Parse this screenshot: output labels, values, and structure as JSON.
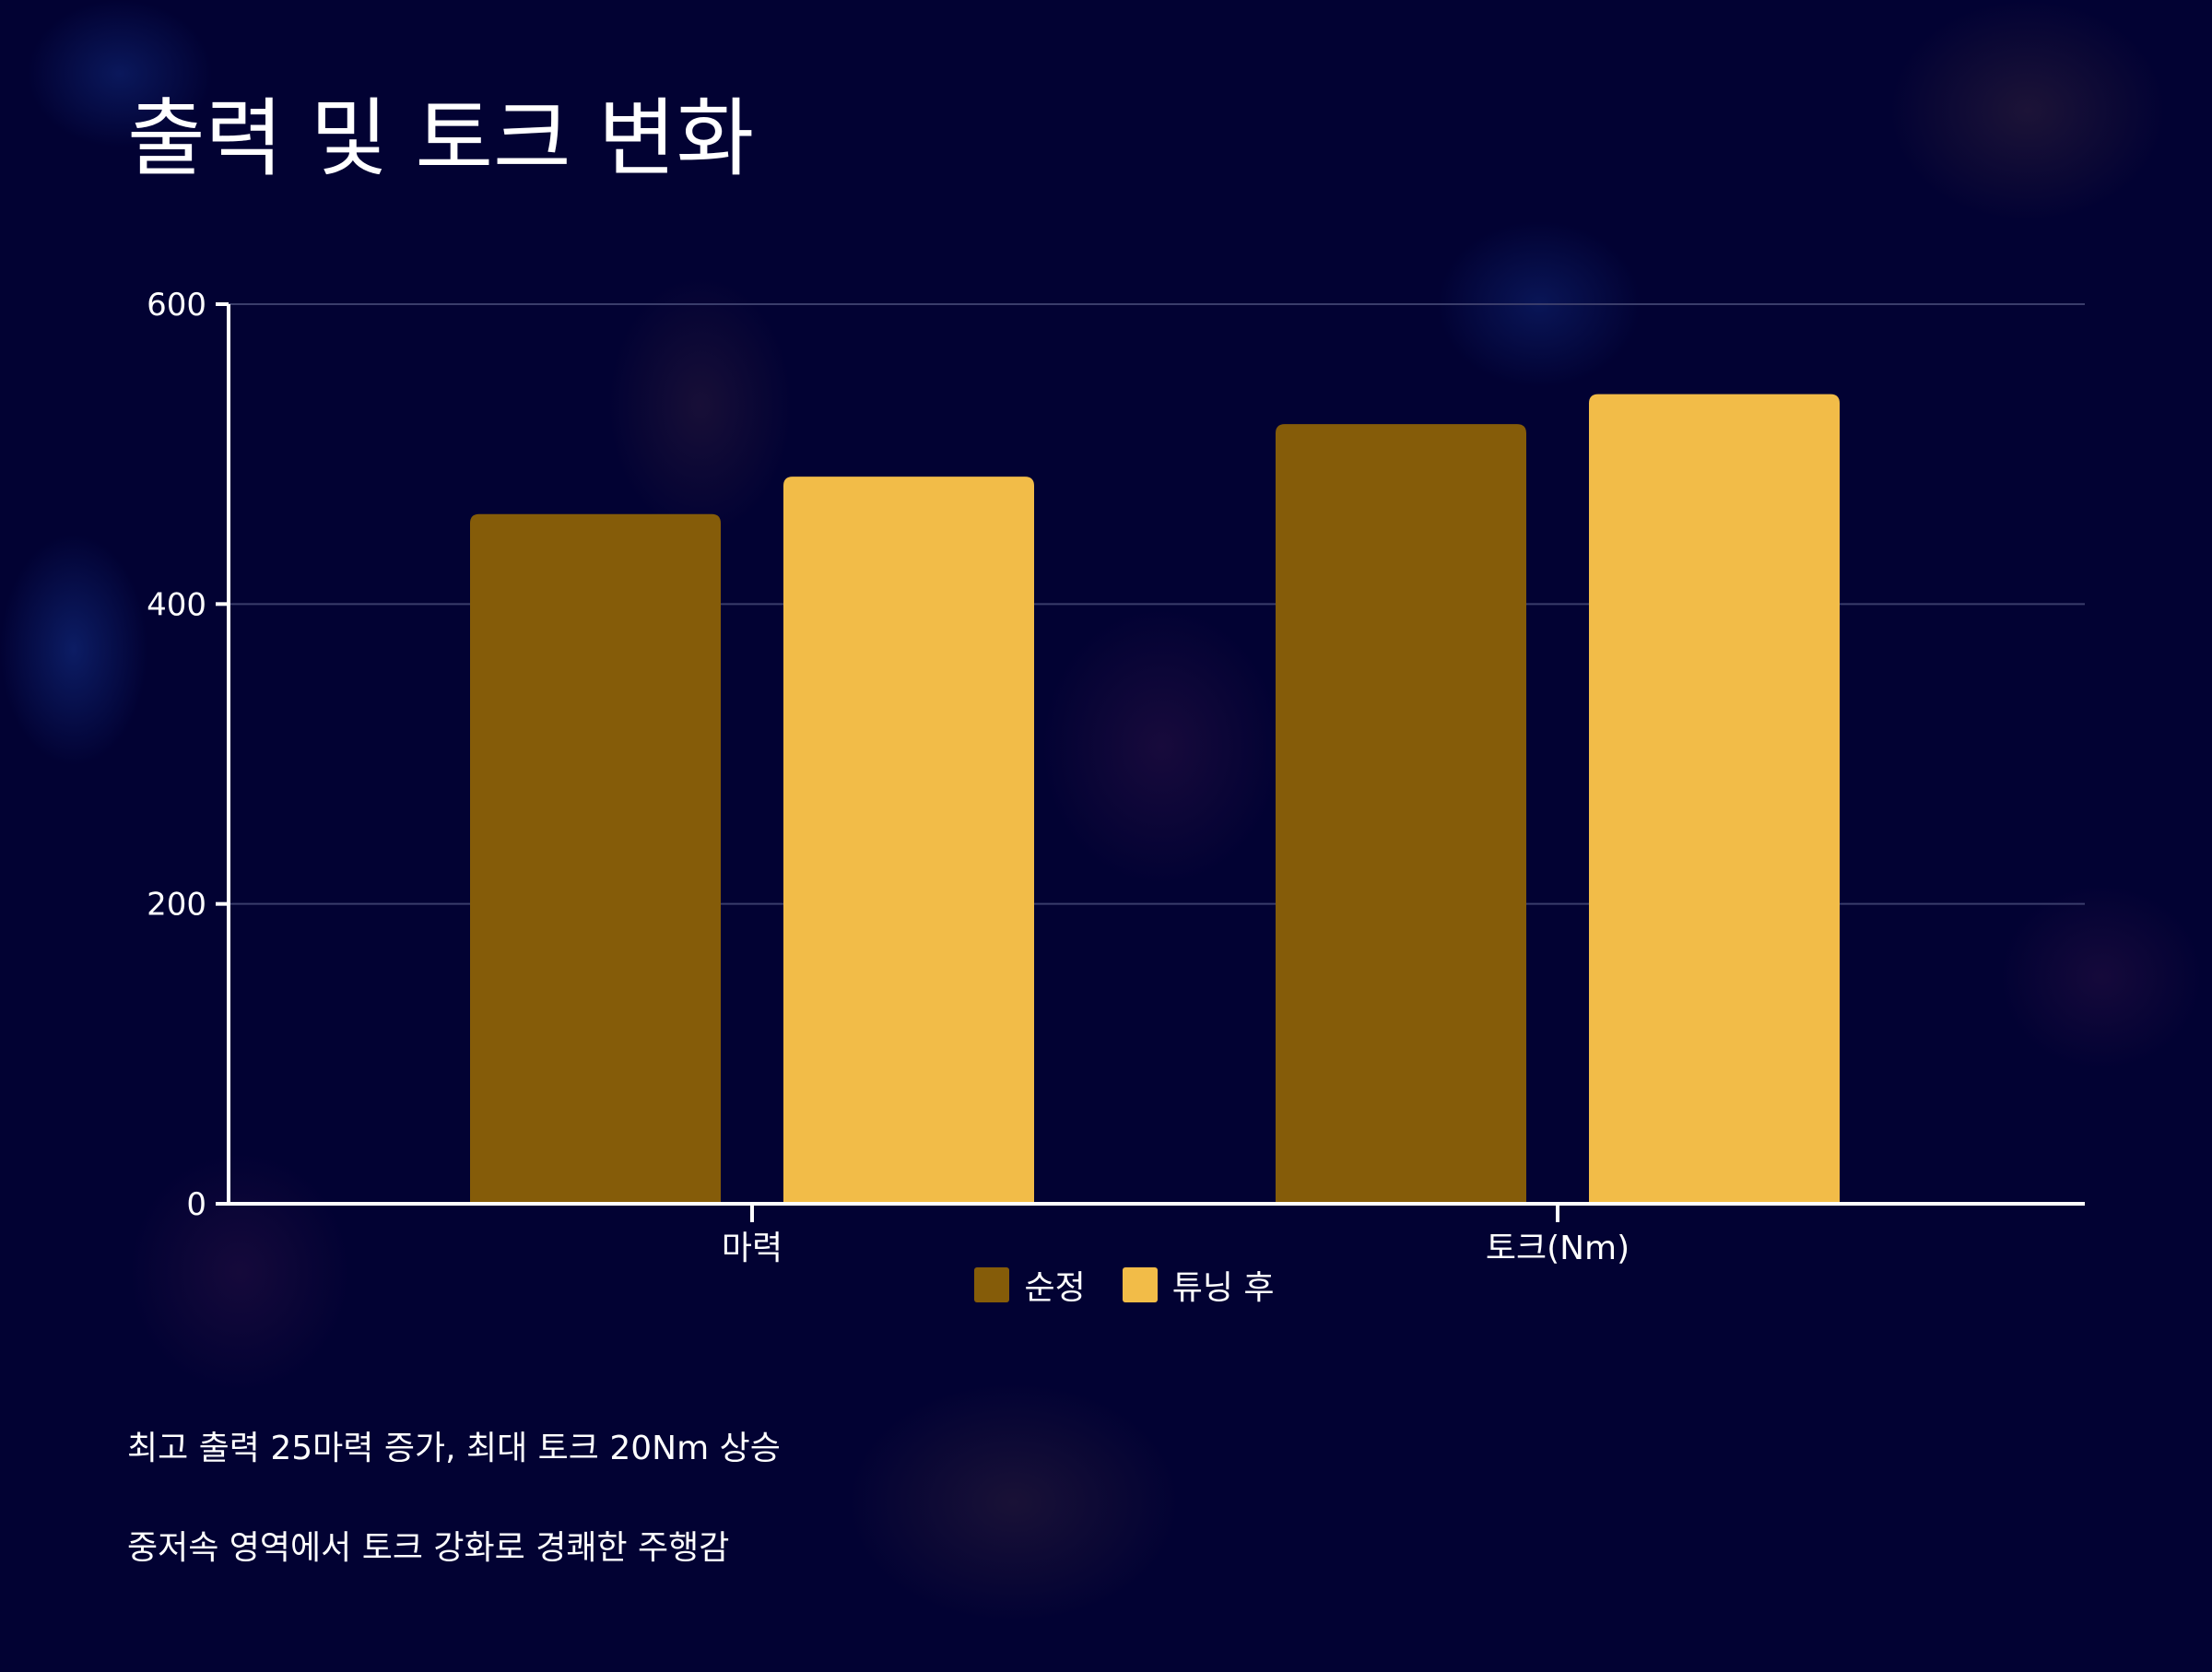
{
  "title": "출력 및 토크 변화",
  "colors": {
    "background": "#020233",
    "grid": "#3a3d6b",
    "axis": "#ffffff",
    "stock": "#855c09",
    "tuned": "#f2bc48"
  },
  "chart_data": {
    "type": "bar",
    "title": "출력 및 토크 변화",
    "xlabel": "",
    "ylabel": "",
    "categories": [
      "마력",
      "토크(Nm)"
    ],
    "series": [
      {
        "name": "순정",
        "color": "#855c09",
        "values": [
          460,
          520
        ]
      },
      {
        "name": "튜닝 후",
        "color": "#f2bc48",
        "values": [
          485,
          540
        ]
      }
    ],
    "ylim": [
      0,
      600
    ],
    "yticks": [
      "0",
      "200",
      "400",
      "600"
    ],
    "grid": true,
    "legend_position": "bottom"
  },
  "notes": [
    "최고 출력 25마력 증가, 최대 토크 20Nm 상승",
    "중저속 영역에서 토크 강화로 경쾌한 주행감"
  ]
}
